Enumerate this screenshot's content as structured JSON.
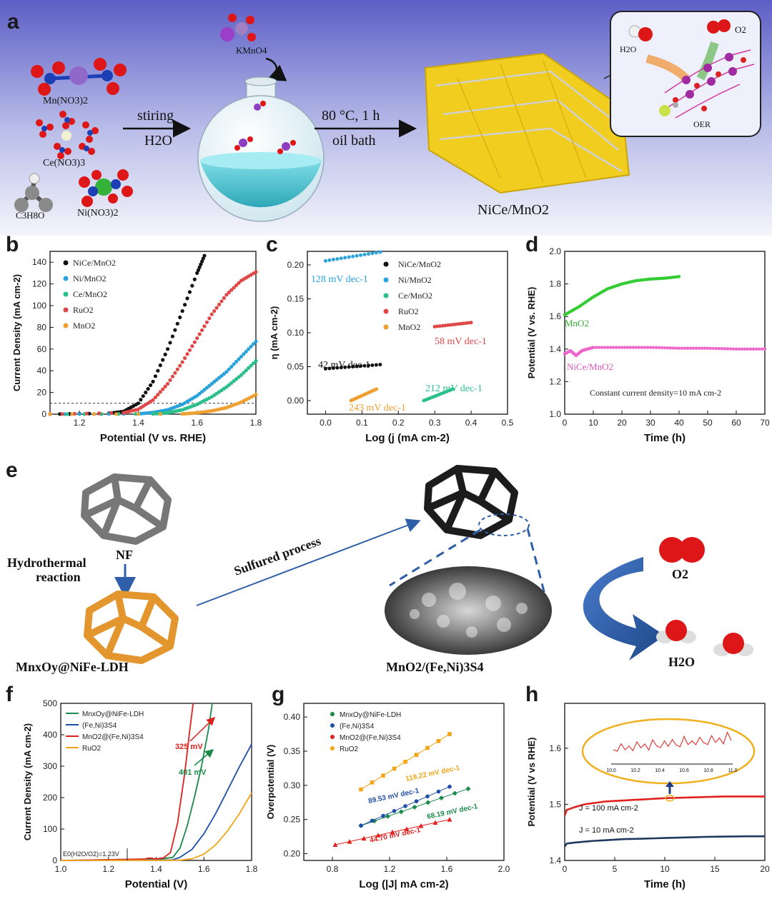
{
  "panel_a": {
    "label": "a",
    "reagents": [
      "Mn(NO3)2",
      "Ce(NO3)3",
      "C3H8O",
      "Ni(NO3)2"
    ],
    "oxidant": "KMnO4",
    "step1_top": "stiring",
    "step1_bottom": "H2O",
    "step2_top": "80 °C, 1 h",
    "step2_bottom": "oil bath",
    "product": "NiCe/MnO2",
    "inset_h2o": "H2O",
    "inset_o2": "O2",
    "inset_oer": "OER",
    "colors": {
      "bg_top": "#5f5fc8",
      "bg_bottom": "#f3f4fb",
      "flask_liquid": "#58c7d4",
      "nanosheet": "#f2cf1c"
    }
  },
  "panel_e": {
    "label": "e",
    "nf": "NF",
    "step_hydro_1": "Hydrothermal",
    "step_hydro_2": "reaction",
    "step_sulfur": "Sulfured    process",
    "precursor": "MnxOy@NiFe-LDH",
    "product": "MnO2/(Fe,Ni)3S4",
    "o2": "O2",
    "h2o": "H2O",
    "colors": {
      "foam_grey": "#8a8a8a",
      "foam_black": "#1c1c1c",
      "foam_orange": "#e3962e",
      "arrow_blue": "#2e5fa8"
    }
  },
  "chart_data": [
    {
      "id": "b",
      "label": "b",
      "type": "line",
      "xlabel": "Potential (V vs. RHE)",
      "ylabel": "Current Density (mA cm-2)",
      "xlim": [
        1.1,
        1.8
      ],
      "ylim": [
        0,
        150
      ],
      "xticks": [
        "1.2",
        "1.4",
        "1.6",
        "1.8"
      ],
      "yticks": [
        "0",
        "20",
        "40",
        "60",
        "80",
        "100",
        "120",
        "140"
      ],
      "reference_line": 10,
      "series": [
        {
          "name": "NiCe/MnO2",
          "color": "#111111",
          "x": [
            1.1,
            1.3,
            1.35,
            1.4,
            1.45,
            1.5,
            1.55,
            1.6,
            1.625
          ],
          "y": [
            0,
            0.8,
            2.5,
            10,
            30,
            60,
            95,
            130,
            146
          ]
        },
        {
          "name": "Ni/MnO2",
          "color": "#2aa3dc",
          "x": [
            1.1,
            1.4,
            1.45,
            1.5,
            1.55,
            1.6,
            1.65,
            1.7,
            1.75,
            1.8
          ],
          "y": [
            0,
            0.3,
            1.5,
            4,
            9,
            17,
            28,
            39,
            53,
            67
          ]
        },
        {
          "name": "Ce/MnO2",
          "color": "#2bbf8a",
          "x": [
            1.1,
            1.45,
            1.5,
            1.55,
            1.6,
            1.65,
            1.7,
            1.75,
            1.8
          ],
          "y": [
            0,
            0.3,
            1.2,
            4,
            9,
            16,
            25,
            36,
            49
          ]
        },
        {
          "name": "RuO2",
          "color": "#e04848",
          "x": [
            1.1,
            1.35,
            1.4,
            1.45,
            1.5,
            1.55,
            1.6,
            1.65,
            1.7,
            1.75,
            1.8
          ],
          "y": [
            0,
            1.2,
            4.5,
            13,
            28,
            48,
            70,
            92,
            110,
            123,
            131
          ]
        },
        {
          "name": "MnO2",
          "color": "#f0a030",
          "x": [
            1.1,
            1.55,
            1.6,
            1.65,
            1.7,
            1.75,
            1.8
          ],
          "y": [
            0,
            0.2,
            1.2,
            3,
            6,
            11,
            18
          ]
        }
      ]
    },
    {
      "id": "c",
      "label": "c",
      "type": "scatter",
      "xlabel": "Log (j (mA cm-2)",
      "ylabel": "η (mA cm-2)",
      "xlim": [
        -0.05,
        0.5
      ],
      "ylim": [
        -0.02,
        0.22
      ],
      "xticks": [
        "0.0",
        "0.1",
        "0.2",
        "0.3",
        "0.4",
        "0.5"
      ],
      "yticks": [
        "0.00",
        "0.05",
        "0.10",
        "0.15",
        "0.20"
      ],
      "series": [
        {
          "name": "NiCe/MnO2",
          "color": "#111111",
          "x_range": [
            0.0,
            0.15
          ],
          "y_range": [
            0.047,
            0.053
          ],
          "tafel": "42 mV dec-1"
        },
        {
          "name": "Ni/MnO2",
          "color": "#2aa3dc",
          "x_range": [
            0.0,
            0.15
          ],
          "y_range": [
            0.206,
            0.219
          ],
          "tafel": "128 mV dec-1"
        },
        {
          "name": "Ce/MnO2",
          "color": "#2bbf8a",
          "x_range": [
            0.27,
            0.35
          ],
          "y_range": [
            0.0,
            0.017
          ],
          "tafel": "212 mV dec-1"
        },
        {
          "name": "RuO2",
          "color": "#e04848",
          "x_range": [
            0.3,
            0.4
          ],
          "y_range": [
            0.109,
            0.115
          ],
          "tafel": "58 mV dec-1"
        },
        {
          "name": "MnO2",
          "color": "#f0a030",
          "x_range": [
            0.07,
            0.14
          ],
          "y_range": [
            0.0,
            0.017
          ],
          "tafel": "243 mV dec-1"
        }
      ]
    },
    {
      "id": "d",
      "label": "d",
      "type": "line",
      "xlabel": "Time (h)",
      "ylabel": "Potential (V vs. RHE)",
      "xlim": [
        0,
        70
      ],
      "ylim": [
        1.0,
        2.0
      ],
      "xticks": [
        "0",
        "10",
        "20",
        "30",
        "40",
        "50",
        "60",
        "70"
      ],
      "yticks": [
        "1.0",
        "1.2",
        "1.4",
        "1.6",
        "1.8",
        "2.0"
      ],
      "annotation": "Constant current density=10 mA cm-2",
      "series": [
        {
          "name": "MnO2",
          "color": "#33cc33",
          "x": [
            0,
            5,
            10,
            15,
            20,
            25,
            30,
            35,
            40
          ],
          "y": [
            1.61,
            1.66,
            1.72,
            1.77,
            1.8,
            1.82,
            1.83,
            1.835,
            1.845
          ]
        },
        {
          "name": "NiCe/MnO2",
          "color": "#ee66cc",
          "x": [
            0,
            2,
            4,
            6,
            8,
            10,
            20,
            30,
            40,
            50,
            60,
            70
          ],
          "y": [
            1.37,
            1.39,
            1.36,
            1.39,
            1.4,
            1.41,
            1.41,
            1.41,
            1.405,
            1.405,
            1.4,
            1.4
          ]
        }
      ]
    },
    {
      "id": "f",
      "label": "f",
      "type": "line",
      "xlabel": "Potential (V)",
      "ylabel": "Current Density (mA cm-2)",
      "xlim": [
        1.0,
        1.8
      ],
      "ylim": [
        0,
        500
      ],
      "xticks": [
        "1.0",
        "1.2",
        "1.4",
        "1.6",
        "1.8"
      ],
      "yticks": [
        "0",
        "100",
        "200",
        "300",
        "400",
        "500"
      ],
      "ref_label": "E0(H2O/O2)=1.23V",
      "annotations": [
        "325 mV",
        "401 mV"
      ],
      "series": [
        {
          "name": "MnxOy@NiFe-LDH",
          "color": "#1a8a4a",
          "x": [
            1.0,
            1.42,
            1.47,
            1.5,
            1.53,
            1.56,
            1.59,
            1.62,
            1.635
          ],
          "y": [
            0,
            5,
            10,
            40,
            110,
            200,
            300,
            420,
            500
          ]
        },
        {
          "name": "(Fe,Ni)3S4",
          "color": "#1f4ea8",
          "x": [
            1.0,
            1.47,
            1.5,
            1.55,
            1.6,
            1.65,
            1.7,
            1.75,
            1.8
          ],
          "y": [
            0,
            2,
            10,
            35,
            85,
            150,
            225,
            300,
            370
          ]
        },
        {
          "name": "MnO2@(Fe,Ni)3S4",
          "color": "#e0201c",
          "x": [
            1.0,
            1.35,
            1.37,
            1.4,
            1.43,
            1.46,
            1.49,
            1.52,
            1.54,
            1.555
          ],
          "y": [
            0,
            4,
            8,
            5,
            8,
            25,
            120,
            280,
            410,
            500
          ]
        },
        {
          "name": "RuO2",
          "color": "#f2a516",
          "x": [
            1.0,
            1.5,
            1.55,
            1.6,
            1.65,
            1.7,
            1.75,
            1.8
          ],
          "y": [
            0,
            1,
            5,
            20,
            50,
            95,
            150,
            215
          ]
        }
      ]
    },
    {
      "id": "g",
      "label": "g",
      "type": "scatter",
      "xlabel": "Log (|J| mA cm-2)",
      "ylabel": "Overpotential (V)",
      "xlim": [
        0.6,
        2.0
      ],
      "ylim": [
        0.19,
        0.42
      ],
      "xticks": [
        "0.8",
        "1.2",
        "1.6",
        "2.0"
      ],
      "yticks": [
        "0.20",
        "0.25",
        "0.30",
        "0.35",
        "0.40"
      ],
      "series": [
        {
          "name": "MnxOy@NiFe-LDH",
          "color": "#1a8a4a",
          "x_range": [
            1.0,
            1.75
          ],
          "y_range": [
            0.241,
            0.295
          ],
          "tafel": "68.19 mV dec-1"
        },
        {
          "name": "(Fe,Ni)3S4",
          "color": "#1f4ea8",
          "x_range": [
            1.0,
            1.62
          ],
          "y_range": [
            0.241,
            0.298
          ],
          "tafel": "89.53 mV dec-1"
        },
        {
          "name": "MnO2@(Fe,Ni)3S4",
          "color": "#e0201c",
          "x_range": [
            0.82,
            1.62
          ],
          "y_range": [
            0.213,
            0.25
          ],
          "tafel": "44.70 mV dec-1"
        },
        {
          "name": "RuO2",
          "color": "#f2a516",
          "x_range": [
            1.0,
            1.62
          ],
          "y_range": [
            0.294,
            0.375
          ],
          "tafel": "119.22 mV dec-1"
        }
      ]
    },
    {
      "id": "h",
      "label": "h",
      "type": "line",
      "xlabel": "Time (h)",
      "ylabel": "Potential (V vs RHE)",
      "xlim": [
        0,
        20
      ],
      "ylim": [
        1.4,
        1.68
      ],
      "xticks": [
        "0",
        "5",
        "10",
        "15",
        "20"
      ],
      "yticks": [
        "1.4",
        "1.5",
        "1.6"
      ],
      "inset_xticks": [
        "10.0",
        "10.2",
        "10.4",
        "10.6",
        "10.8",
        "11.0"
      ],
      "series": [
        {
          "name": "J = 100 mA cm-2",
          "color": "#e0201c",
          "x": [
            0,
            0.2,
            1,
            2,
            4,
            6,
            8,
            10,
            12,
            14,
            16,
            18,
            20
          ],
          "y": [
            1.48,
            1.49,
            1.495,
            1.5,
            1.505,
            1.507,
            1.509,
            1.511,
            1.512,
            1.513,
            1.514,
            1.514,
            1.514
          ]
        },
        {
          "name": "J = 10 mA cm-2",
          "color": "#1f3a60",
          "x": [
            0,
            0.2,
            1,
            3,
            6,
            10,
            14,
            18,
            20
          ],
          "y": [
            1.425,
            1.43,
            1.432,
            1.435,
            1.438,
            1.44,
            1.442,
            1.443,
            1.443
          ]
        }
      ]
    }
  ]
}
